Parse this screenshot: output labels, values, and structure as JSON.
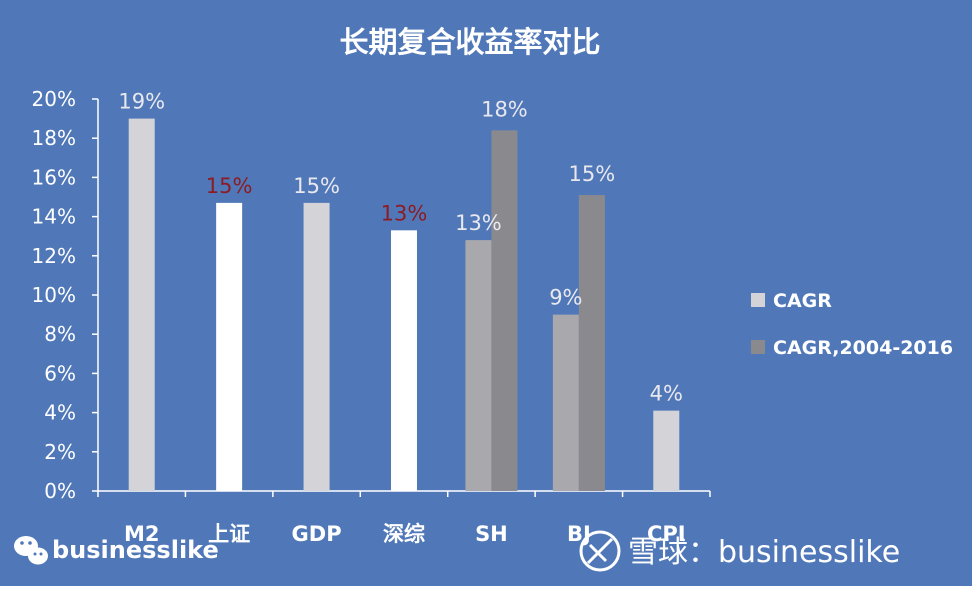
{
  "chart_data": {
    "type": "bar",
    "title": "长期复合收益率对比",
    "categories": [
      "M2",
      "上证",
      "GDP",
      "深综",
      "SH",
      "BJ",
      "CPI"
    ],
    "series": [
      {
        "name": "CAGR",
        "values": [
          19,
          14.7,
          14.7,
          13.3,
          12.8,
          9.0,
          4.1
        ],
        "labels": [
          "19%",
          "15%",
          "15%",
          "13%",
          "13%",
          "9%",
          "4%"
        ]
      },
      {
        "name": "CAGR,2004-2016",
        "values": [
          null,
          null,
          null,
          null,
          18.4,
          15.1,
          null
        ],
        "labels": [
          null,
          null,
          null,
          null,
          "18%",
          "15%",
          null
        ]
      }
    ],
    "highlighted_categories": [
      "上证",
      "深综"
    ],
    "y_ticks": [
      "0%",
      "2%",
      "4%",
      "6%",
      "8%",
      "10%",
      "12%",
      "14%",
      "16%",
      "18%",
      "20%"
    ],
    "ylim": [
      0,
      20
    ],
    "grid": false,
    "legend_position": "right",
    "colors": {
      "background": "#5078b8",
      "cagr": "#d4d4d8",
      "cagr_highlight": "#ffffff",
      "cagr_2004_2016": "#8a8a8e",
      "cagr_sh_bj": "#a9a9ad",
      "label_default": "#e8e8ee",
      "label_highlight": "#8b1c24",
      "axis": "#ffffff"
    }
  },
  "watermarks": {
    "left": "businesslike",
    "right": "雪球：businesslike"
  }
}
